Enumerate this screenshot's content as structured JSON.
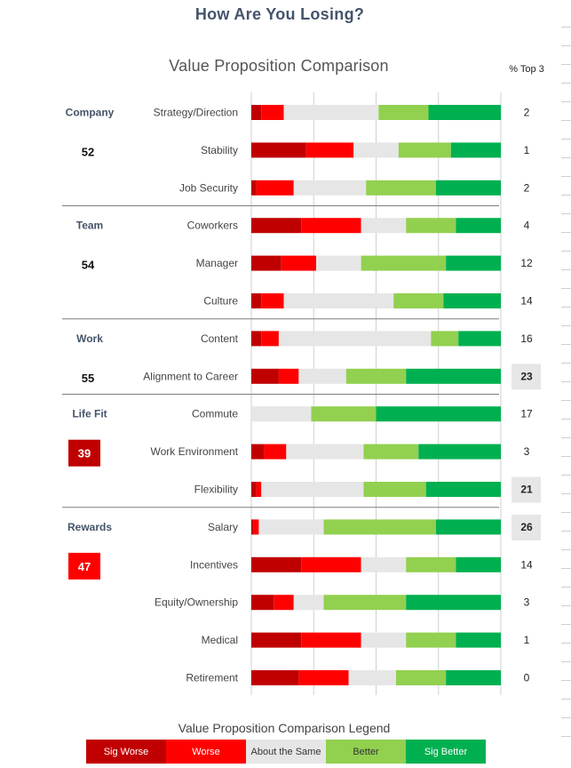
{
  "page": {
    "title": "How Are You Losing?"
  },
  "chart_data": {
    "type": "bar",
    "stacked": true,
    "orientation": "horizontal",
    "title": "Value Proposition Comparison",
    "top3_header": "% Top 3",
    "colors": {
      "Sig Worse": "#c00000",
      "Worse": "#ff0000",
      "About the Same": "#e6e6e6",
      "Better": "#92d050",
      "Sig Better": "#00b050",
      "category_label": "#44546a",
      "score_low": "#c00000",
      "score_lower": "#ff0000",
      "highlight_bg": "#e6e6e6"
    },
    "series": [
      "Sig Worse",
      "Worse",
      "About the Same",
      "Better",
      "Sig Better"
    ],
    "groups": [
      {
        "name": "Company",
        "score": "52",
        "score_style": "plain",
        "items": [
          "Strategy/Direction",
          "Stability",
          "Job Security"
        ]
      },
      {
        "name": "Team",
        "score": "54",
        "score_style": "plain",
        "items": [
          "Coworkers",
          "Manager",
          "Culture"
        ]
      },
      {
        "name": "Work",
        "score": "55",
        "score_style": "plain",
        "items": [
          "Content",
          "Alignment to Career"
        ]
      },
      {
        "name": "Life Fit",
        "score": "39",
        "score_style": "dark-red",
        "items": [
          "Commute",
          "Work Environment",
          "Flexibility"
        ]
      },
      {
        "name": "Rewards",
        "score": "47",
        "score_style": "red",
        "items": [
          "Salary",
          "Incentives",
          "Equity/Ownership",
          "Medical",
          "Retirement"
        ]
      }
    ],
    "rows": [
      {
        "label": "Strategy/Direction",
        "values": [
          4,
          9,
          38,
          20,
          29
        ],
        "top3": "2",
        "highlight": false
      },
      {
        "label": "Stability",
        "values": [
          22,
          19,
          18,
          21,
          20
        ],
        "top3": "1",
        "highlight": false
      },
      {
        "label": "Job Security",
        "values": [
          2,
          15,
          29,
          28,
          26
        ],
        "top3": "2",
        "highlight": false
      },
      {
        "label": "Coworkers",
        "values": [
          20,
          24,
          18,
          20,
          18
        ],
        "top3": "4",
        "highlight": false
      },
      {
        "label": "Manager",
        "values": [
          12,
          14,
          18,
          34,
          22
        ],
        "top3": "12",
        "highlight": false
      },
      {
        "label": "Culture",
        "values": [
          4,
          9,
          44,
          20,
          23
        ],
        "top3": "14",
        "highlight": false
      },
      {
        "label": "Content",
        "values": [
          4,
          7,
          61,
          11,
          17
        ],
        "top3": "16",
        "highlight": false
      },
      {
        "label": "Alignment to Career",
        "values": [
          11,
          8,
          19,
          24,
          38
        ],
        "top3": "23",
        "highlight": true
      },
      {
        "label": "Commute",
        "values": [
          0,
          0,
          24,
          26,
          50
        ],
        "top3": "17",
        "highlight": false
      },
      {
        "label": "Work Environment",
        "values": [
          5,
          9,
          31,
          22,
          33
        ],
        "top3": "3",
        "highlight": false
      },
      {
        "label": "Flexibility",
        "values": [
          2,
          2,
          41,
          25,
          30
        ],
        "top3": "21",
        "highlight": true
      },
      {
        "label": "Salary",
        "values": [
          1,
          2,
          26,
          45,
          26
        ],
        "top3": "26",
        "highlight": true
      },
      {
        "label": "Incentives",
        "values": [
          20,
          24,
          18,
          20,
          18
        ],
        "top3": "14",
        "highlight": false
      },
      {
        "label": "Equity/Ownership",
        "values": [
          9,
          8,
          12,
          33,
          38
        ],
        "top3": "3",
        "highlight": false
      },
      {
        "label": "Medical",
        "values": [
          20,
          24,
          18,
          20,
          18
        ],
        "top3": "1",
        "highlight": false
      },
      {
        "label": "Retirement",
        "values": [
          19,
          20,
          19,
          20,
          22
        ],
        "top3": "0",
        "highlight": false
      }
    ],
    "xlim": [
      0,
      100
    ],
    "grid": true
  },
  "legend": {
    "title": "Value Proposition Comparison Legend",
    "items": [
      {
        "label": "Sig Worse",
        "bg": "#c00000",
        "fg": "#ffffff"
      },
      {
        "label": "Worse",
        "bg": "#ff0000",
        "fg": "#ffffff"
      },
      {
        "label": "About the Same",
        "bg": "#e6e6e6",
        "fg": "#333333"
      },
      {
        "label": "Better",
        "bg": "#92d050",
        "fg": "#333333"
      },
      {
        "label": "Sig Better",
        "bg": "#00b050",
        "fg": "#ffffff"
      }
    ]
  }
}
